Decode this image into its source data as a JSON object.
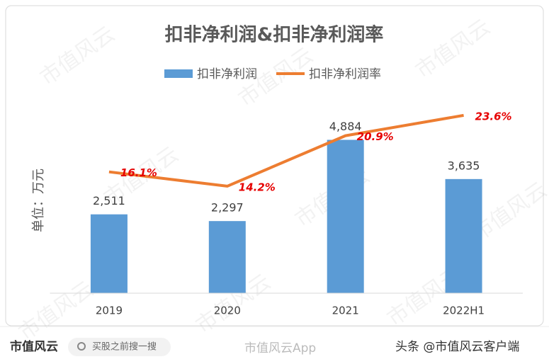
{
  "chart_data": {
    "type": "bar-line",
    "title": "扣非净利润&扣非净利润率",
    "y_label": "单位：万元",
    "categories": [
      "2019",
      "2020",
      "2021",
      "2022H1"
    ],
    "series": [
      {
        "name": "扣非净利润",
        "type": "bar",
        "color": "#5b9bd5",
        "values": [
          2511,
          2297,
          4884,
          3635
        ],
        "value_labels": [
          "2,511",
          "2,297",
          "4,884",
          "3,635"
        ]
      },
      {
        "name": "扣非净利润率",
        "type": "line",
        "axis": "y2",
        "color": "#ed7d31",
        "values": [
          16.1,
          14.2,
          20.9,
          23.6
        ],
        "value_labels": [
          "16.1%",
          "14.2%",
          "20.9%",
          "23.6%"
        ]
      }
    ],
    "ylim": [
      0,
      6000
    ],
    "y2lim": [
      0,
      25
    ],
    "legend": "top"
  },
  "watermark": "市值风云",
  "footer": {
    "logo": "市值风云",
    "search": "买股之前搜一搜",
    "weibo": "市值风云App",
    "toutiao": "头条 @市值风云客户端"
  }
}
